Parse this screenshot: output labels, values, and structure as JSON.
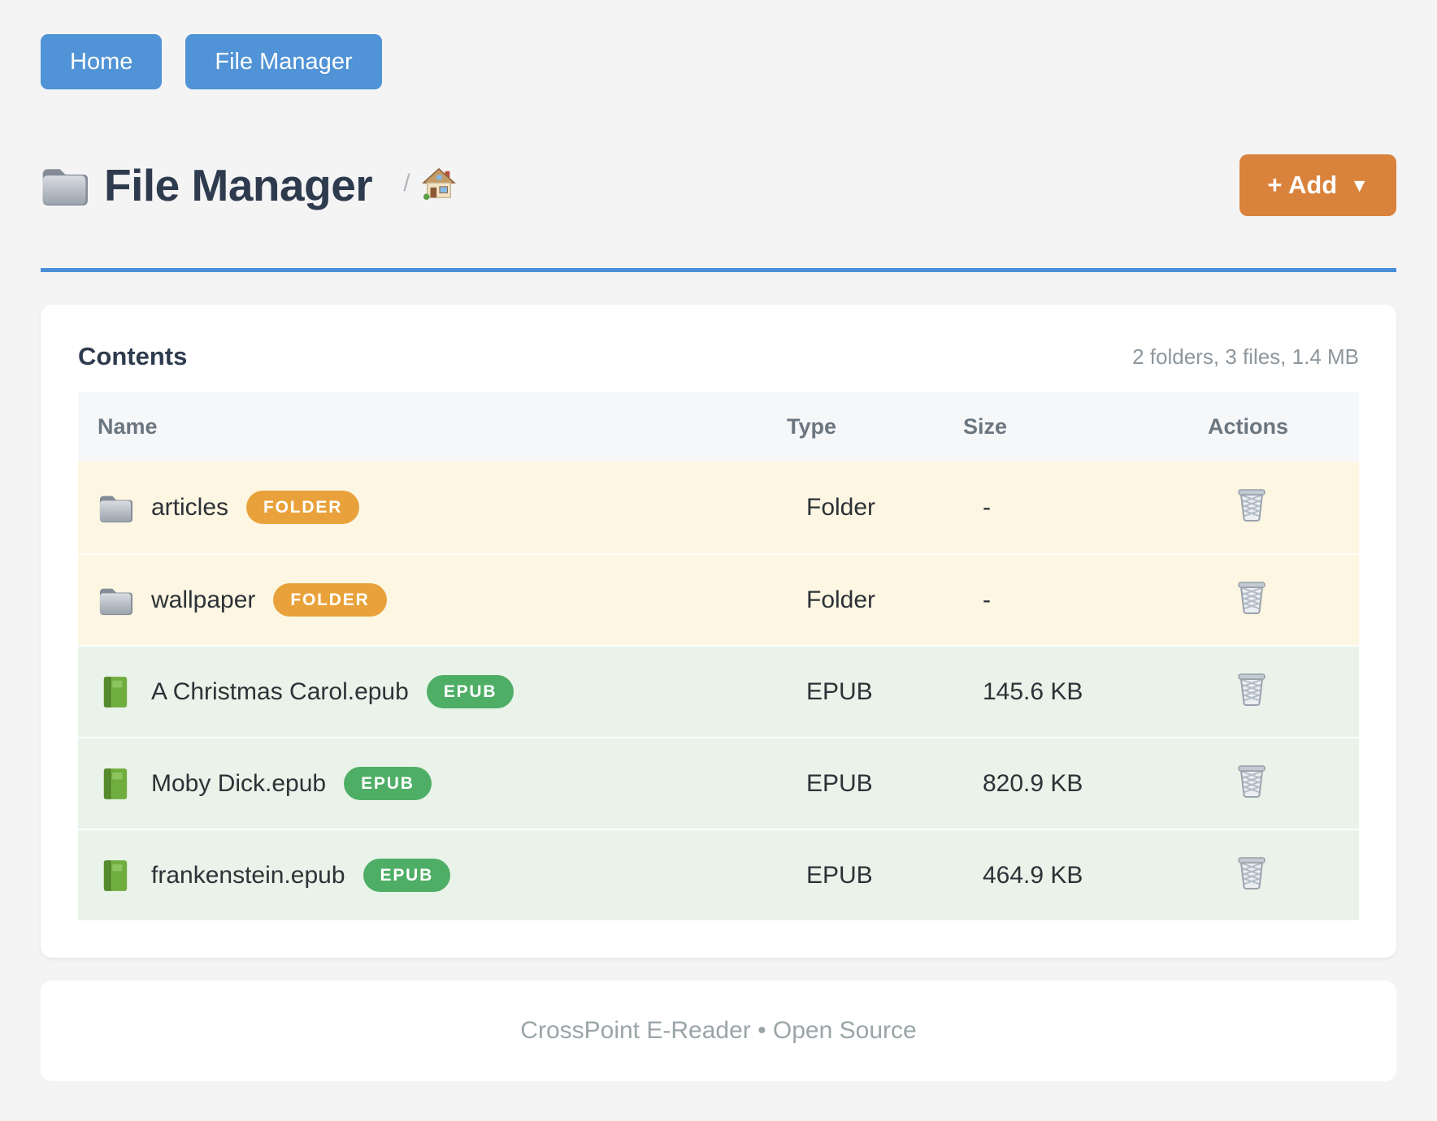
{
  "nav": {
    "home_label": "Home",
    "file_manager_label": "File Manager"
  },
  "header": {
    "title": "File Manager",
    "breadcrumb_separator": "/",
    "add_button": {
      "label": "+ Add",
      "caret": "▼"
    }
  },
  "contents": {
    "heading": "Contents",
    "summary": "2 folders, 3 files, 1.4 MB",
    "table": {
      "headers": {
        "name": "Name",
        "type": "Type",
        "size": "Size",
        "actions": "Actions"
      },
      "rows": [
        {
          "name": "articles",
          "badge": "FOLDER",
          "type": "Folder",
          "size": "-",
          "kind": "folder",
          "icon": "folder-icon",
          "action_icon": "trash-icon"
        },
        {
          "name": "wallpaper",
          "badge": "FOLDER",
          "type": "Folder",
          "size": "-",
          "kind": "folder",
          "icon": "folder-icon",
          "action_icon": "trash-icon"
        },
        {
          "name": "A Christmas Carol.epub",
          "badge": "EPUB",
          "type": "EPUB",
          "size": "145.6 KB",
          "kind": "epub",
          "icon": "book-icon",
          "action_icon": "trash-icon"
        },
        {
          "name": "Moby Dick.epub",
          "badge": "EPUB",
          "type": "EPUB",
          "size": "820.9 KB",
          "kind": "epub",
          "icon": "book-icon",
          "action_icon": "trash-icon"
        },
        {
          "name": "frankenstein.epub",
          "badge": "EPUB",
          "type": "EPUB",
          "size": "464.9 KB",
          "kind": "epub",
          "icon": "book-icon",
          "action_icon": "trash-icon"
        }
      ]
    }
  },
  "footer": {
    "text": "CrossPoint E-Reader • Open Source"
  },
  "colors": {
    "nav_blue": "#5093d6",
    "divider_blue": "#4a90d9",
    "add_orange": "#d9823b",
    "badge_folder": "#e9a23b",
    "badge_epub": "#4fae66",
    "row_folder_bg": "#fdf6e2",
    "row_epub_bg": "#e9f3e9"
  }
}
